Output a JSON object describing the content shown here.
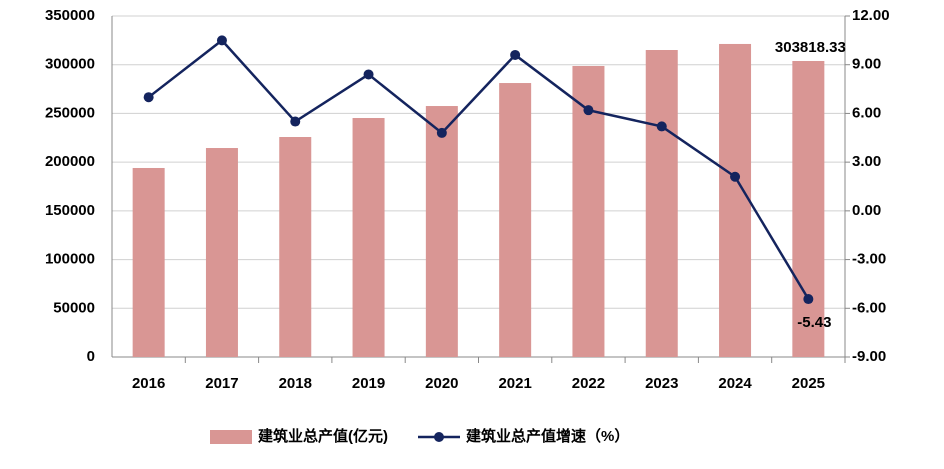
{
  "chart_data": {
    "type": "bar-line",
    "categories": [
      "2016",
      "2017",
      "2018",
      "2019",
      "2020",
      "2021",
      "2022",
      "2023",
      "2024",
      "2025"
    ],
    "series": [
      {
        "name": "建筑业总产值(亿元)",
        "type": "bar",
        "color": "#d99694",
        "values": [
          194000,
          214500,
          225800,
          245300,
          257600,
          281200,
          298700,
          315100,
          321300,
          303818.33
        ],
        "value_labels": [
          null,
          null,
          null,
          null,
          null,
          null,
          null,
          null,
          null,
          "303818.33"
        ]
      },
      {
        "name": "建筑业总产值增速（%）",
        "type": "line",
        "axis": "y2",
        "color": "#14245e",
        "values": [
          7.0,
          10.5,
          5.5,
          8.4,
          4.8,
          9.6,
          6.2,
          5.2,
          2.1,
          -5.43
        ],
        "value_labels": [
          null,
          null,
          null,
          null,
          null,
          null,
          null,
          null,
          null,
          "-5.43"
        ]
      }
    ],
    "ylim": [
      0,
      350000
    ],
    "yticks": [
      0,
      50000,
      100000,
      150000,
      200000,
      250000,
      300000,
      350000
    ],
    "y2lim": [
      -9,
      12
    ],
    "y2ticks": [
      {
        "value": -9,
        "label": "-9.00"
      },
      {
        "value": -6,
        "label": "-6.00"
      },
      {
        "value": -3,
        "label": "-3.00"
      },
      {
        "value": 0,
        "label": "0.00"
      },
      {
        "value": 3,
        "label": "3.00"
      },
      {
        "value": 6,
        "label": "6.00"
      },
      {
        "value": 9,
        "label": "9.00"
      },
      {
        "value": 12,
        "label": "12.00"
      }
    ],
    "grid": true,
    "legend": "bottom"
  }
}
